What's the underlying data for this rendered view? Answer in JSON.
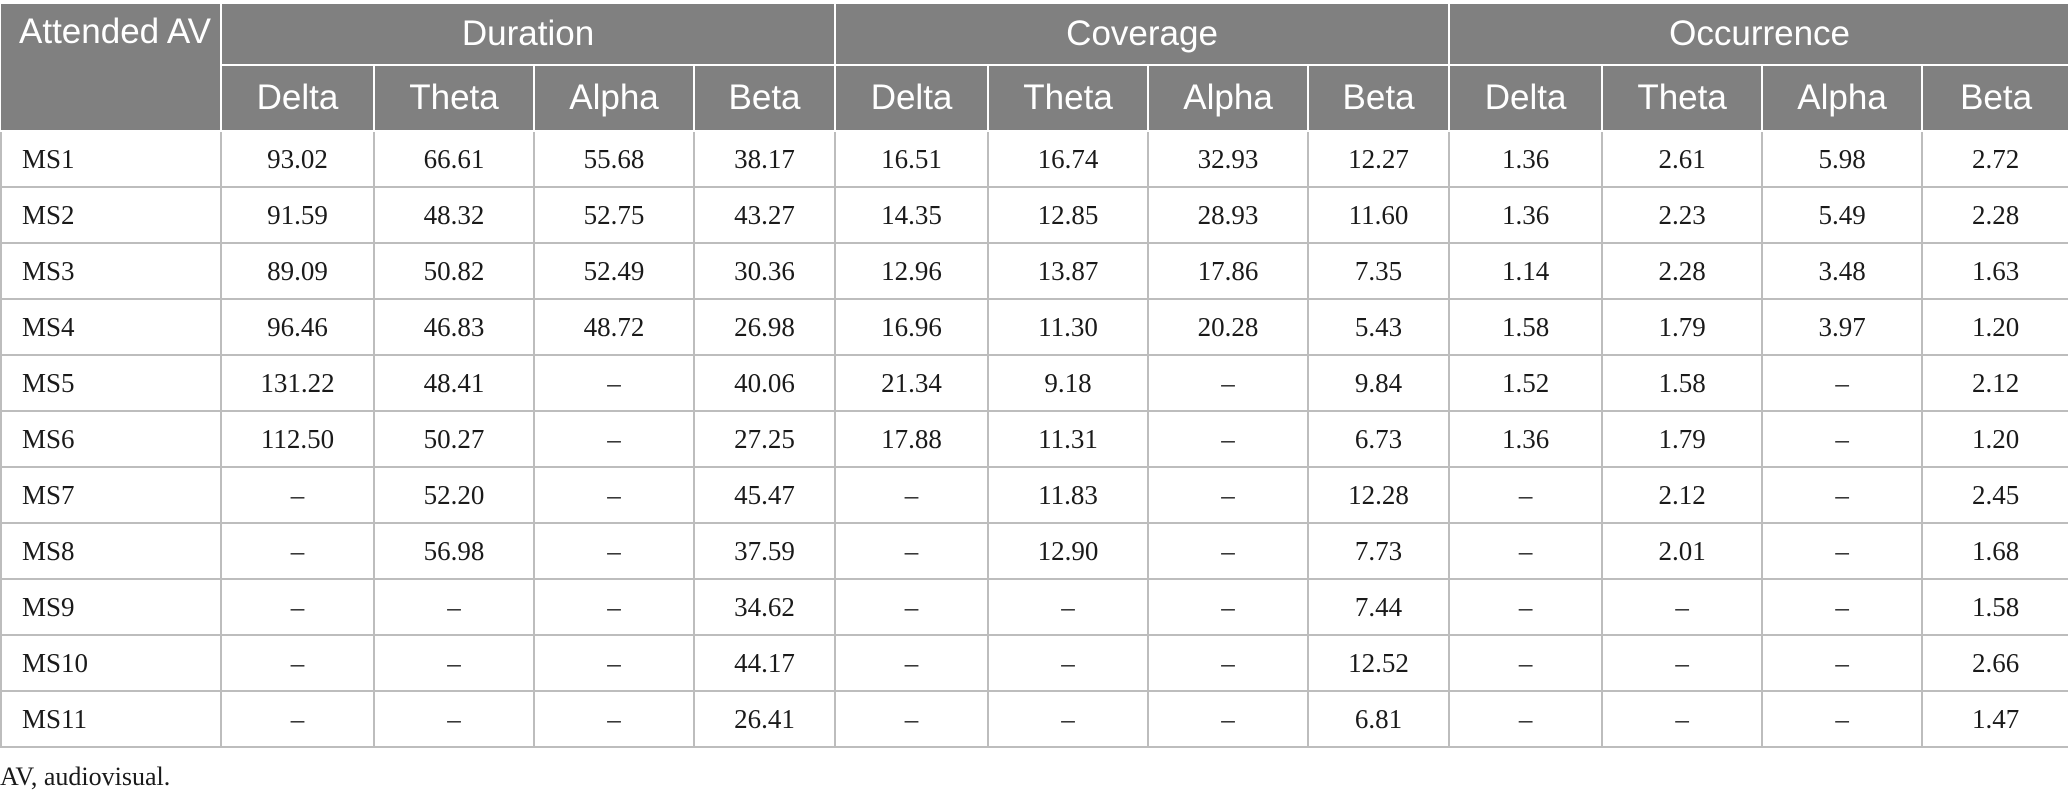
{
  "table": {
    "corner_label": "Attended AV",
    "groups": [
      "Duration",
      "Coverage",
      "Occurrence"
    ],
    "bands": [
      "Delta",
      "Theta",
      "Alpha",
      "Beta"
    ],
    "rows": [
      {
        "label": "MS1",
        "values": [
          "93.02",
          "66.61",
          "55.68",
          "38.17",
          "16.51",
          "16.74",
          "32.93",
          "12.27",
          "1.36",
          "2.61",
          "5.98",
          "2.72"
        ]
      },
      {
        "label": "MS2",
        "values": [
          "91.59",
          "48.32",
          "52.75",
          "43.27",
          "14.35",
          "12.85",
          "28.93",
          "11.60",
          "1.36",
          "2.23",
          "5.49",
          "2.28"
        ]
      },
      {
        "label": "MS3",
        "values": [
          "89.09",
          "50.82",
          "52.49",
          "30.36",
          "12.96",
          "13.87",
          "17.86",
          "7.35",
          "1.14",
          "2.28",
          "3.48",
          "1.63"
        ]
      },
      {
        "label": "MS4",
        "values": [
          "96.46",
          "46.83",
          "48.72",
          "26.98",
          "16.96",
          "11.30",
          "20.28",
          "5.43",
          "1.58",
          "1.79",
          "3.97",
          "1.20"
        ]
      },
      {
        "label": "MS5",
        "values": [
          "131.22",
          "48.41",
          "–",
          "40.06",
          "21.34",
          "9.18",
          "–",
          "9.84",
          "1.52",
          "1.58",
          "–",
          "2.12"
        ]
      },
      {
        "label": "MS6",
        "values": [
          "112.50",
          "50.27",
          "–",
          "27.25",
          "17.88",
          "11.31",
          "–",
          "6.73",
          "1.36",
          "1.79",
          "–",
          "1.20"
        ]
      },
      {
        "label": "MS7",
        "values": [
          "–",
          "52.20",
          "–",
          "45.47",
          "–",
          "11.83",
          "–",
          "12.28",
          "–",
          "2.12",
          "–",
          "2.45"
        ]
      },
      {
        "label": "MS8",
        "values": [
          "–",
          "56.98",
          "–",
          "37.59",
          "–",
          "12.90",
          "–",
          "7.73",
          "–",
          "2.01",
          "–",
          "1.68"
        ]
      },
      {
        "label": "MS9",
        "values": [
          "–",
          "–",
          "–",
          "34.62",
          "–",
          "–",
          "–",
          "7.44",
          "–",
          "–",
          "–",
          "1.58"
        ]
      },
      {
        "label": "MS10",
        "values": [
          "–",
          "–",
          "–",
          "44.17",
          "–",
          "–",
          "–",
          "12.52",
          "–",
          "–",
          "–",
          "2.66"
        ]
      },
      {
        "label": "MS11",
        "values": [
          "–",
          "–",
          "–",
          "26.41",
          "–",
          "–",
          "–",
          "6.81",
          "–",
          "–",
          "–",
          "1.47"
        ]
      }
    ]
  },
  "footnote": "AV, audiovisual."
}
